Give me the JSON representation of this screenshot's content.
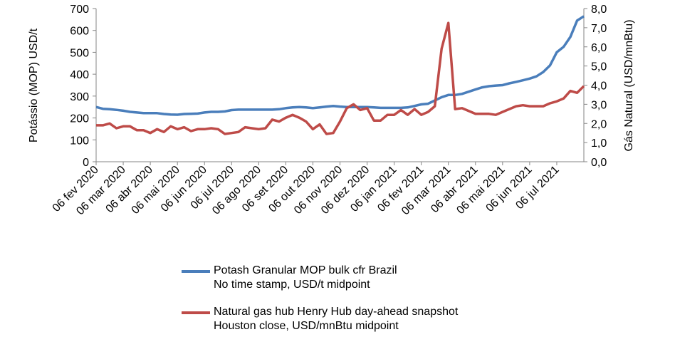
{
  "chart_data": {
    "type": "line",
    "y_label": "Potássio (MOP)  USD/t",
    "y2_label": "Gás Natural (USD/mnBtu)",
    "categories": [
      "06 fev 2020",
      null,
      null,
      null,
      "06 mar 2020",
      null,
      null,
      null,
      "06 abr 2020",
      null,
      null,
      null,
      "06 mai 2020",
      null,
      null,
      null,
      "06 jun 2020",
      null,
      null,
      null,
      "06 jul 2020",
      null,
      null,
      null,
      "06 ago 2020",
      null,
      null,
      null,
      "06 set 2020",
      null,
      null,
      null,
      "06 out 2020",
      null,
      null,
      null,
      "06 nov 2020",
      null,
      null,
      null,
      "06 dez 2020",
      null,
      null,
      null,
      "06 jan 2021",
      null,
      null,
      null,
      "06 fev 2021",
      null,
      null,
      null,
      "06 mar 2021",
      null,
      null,
      null,
      "06 abr 2021",
      null,
      null,
      null,
      "06 mai 2021",
      null,
      null,
      null,
      "06 jun 2021",
      null,
      null,
      null,
      "06 jul 2021",
      null,
      null,
      null,
      null
    ],
    "series": [
      {
        "name": "Potash Granular MOP bulk cfr Brazil\nNo time stamp, USD/t midpoint",
        "color": "#4a7ebb",
        "values": [
          250,
          242,
          240,
          237,
          233,
          228,
          225,
          222,
          222,
          222,
          218,
          216,
          215,
          218,
          219,
          220,
          225,
          228,
          228,
          230,
          236,
          238,
          238,
          238,
          238,
          238,
          238,
          240,
          245,
          248,
          250,
          248,
          245,
          248,
          252,
          255,
          252,
          250,
          250,
          250,
          250,
          248,
          246,
          246,
          246,
          246,
          248,
          255,
          262,
          265,
          280,
          295,
          305,
          305,
          310,
          320,
          330,
          340,
          345,
          348,
          350,
          358,
          365,
          372,
          380,
          390,
          410,
          440,
          500,
          525,
          570,
          645,
          665
        ]
      },
      {
        "name": "Natural gas hub Henry Hub day-ahead snapshot\nHouston close, USD/mnBtu midpoint",
        "color": "#be4b48",
        "axis": "y2",
        "values": [
          1.9,
          1.9,
          2.0,
          1.75,
          1.85,
          1.85,
          1.65,
          1.65,
          1.5,
          1.7,
          1.55,
          1.85,
          1.7,
          1.8,
          1.6,
          1.7,
          1.7,
          1.75,
          1.7,
          1.45,
          1.5,
          1.55,
          1.8,
          1.75,
          1.7,
          1.75,
          2.2,
          2.1,
          2.3,
          2.45,
          2.3,
          2.1,
          1.7,
          1.95,
          1.45,
          1.5,
          2.1,
          2.8,
          3.0,
          2.7,
          2.8,
          2.15,
          2.15,
          2.45,
          2.45,
          2.7,
          2.45,
          2.75,
          2.45,
          2.6,
          2.9,
          5.9,
          7.25,
          2.75,
          2.8,
          2.65,
          2.5,
          2.5,
          2.5,
          2.45,
          2.6,
          2.75,
          2.9,
          2.95,
          2.9,
          2.9,
          2.9,
          3.05,
          3.15,
          3.3,
          3.7,
          3.6,
          3.95
        ]
      }
    ],
    "ylim": [
      0,
      700
    ],
    "yticks": [
      0,
      100,
      200,
      300,
      400,
      500,
      600,
      700
    ],
    "y2lim": [
      0,
      8
    ],
    "y2ticks": [
      {
        "value": 0,
        "label": "0,0"
      },
      {
        "value": 1,
        "label": "1,0"
      },
      {
        "value": 2,
        "label": "2,0"
      },
      {
        "value": 3,
        "label": "3,0"
      },
      {
        "value": 4,
        "label": "4,0"
      },
      {
        "value": 5,
        "label": "5,0"
      },
      {
        "value": 6,
        "label": "6,0"
      },
      {
        "value": 7,
        "label": "7,0"
      },
      {
        "value": 8,
        "label": "8,0"
      }
    ],
    "legend": "bottom"
  }
}
